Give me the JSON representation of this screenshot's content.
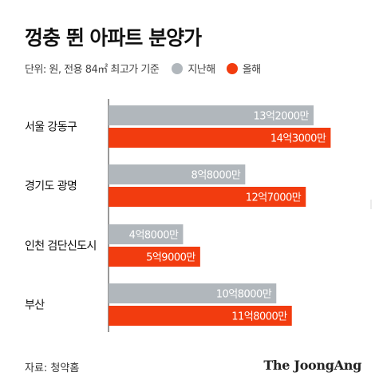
{
  "title": "껑충 뛴 아파트 분양가",
  "subtitle": "단위: 원, 전용 84㎡ 최고가 기준",
  "source": "자료: 청약홈",
  "brand": "The JoongAng",
  "colors": {
    "last_year": "#b1b7bc",
    "this_year": "#f23c0f"
  },
  "chart_data": {
    "type": "bar",
    "orientation": "horizontal",
    "title": "껑충 뛴 아파트 분양가",
    "categories": [
      "서울 강동구",
      "경기도 광명",
      "인천 검단신도시",
      "부산"
    ],
    "series": [
      {
        "name": "지난해",
        "values": [
          132000,
          88000,
          48000,
          108000
        ],
        "labels": [
          "13억2000만",
          "8억8000만",
          "4억8000만",
          "10억8000만"
        ]
      },
      {
        "name": "올해",
        "values": [
          143000,
          127000,
          59000,
          118000
        ],
        "labels": [
          "14억3000만",
          "12억7000만",
          "5억9000만",
          "11억8000만"
        ]
      }
    ],
    "unit": "만원",
    "xlim": [
      0,
      160000
    ],
    "legend": "top"
  }
}
